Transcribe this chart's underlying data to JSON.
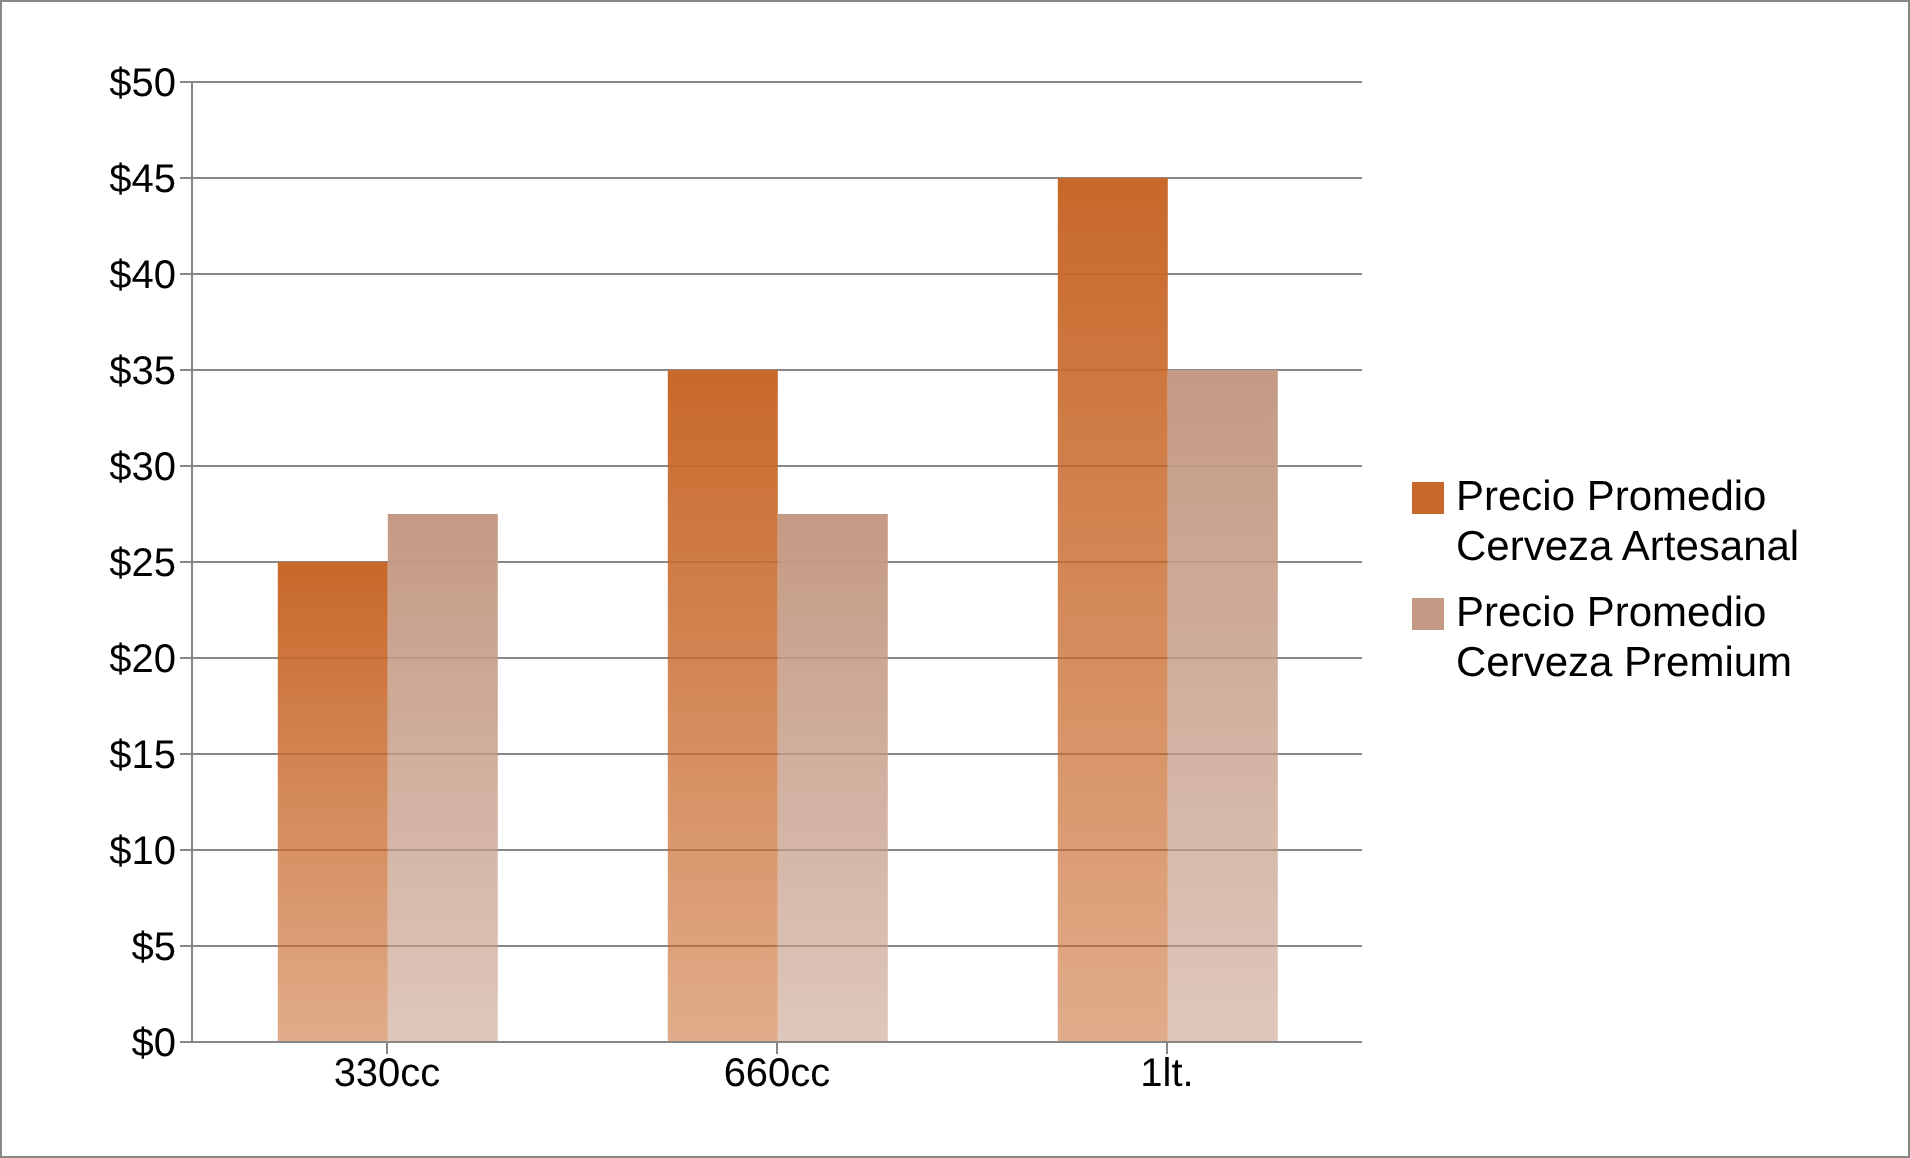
{
  "chart_data": {
    "type": "bar",
    "categories": [
      "330cc",
      "660cc",
      "1lt."
    ],
    "series": [
      {
        "name": "Precio Promedio Cerveza Artesanal",
        "color": "#c8682a",
        "values": [
          25,
          35,
          45
        ]
      },
      {
        "name": "Precio Promedio Cerveza Premium",
        "color": "#c49a84",
        "values": [
          27.5,
          27.5,
          35
        ]
      }
    ],
    "ylim": [
      0,
      50
    ],
    "yticks": [
      {
        "value": 0,
        "label": "$0"
      },
      {
        "value": 5,
        "label": "$5"
      },
      {
        "value": 10,
        "label": "$10"
      },
      {
        "value": 15,
        "label": "$15"
      },
      {
        "value": 20,
        "label": "$20"
      },
      {
        "value": 25,
        "label": "$25"
      },
      {
        "value": 30,
        "label": "$30"
      },
      {
        "value": 35,
        "label": "$35"
      },
      {
        "value": 40,
        "label": "$40"
      },
      {
        "value": 45,
        "label": "$45"
      },
      {
        "value": 50,
        "label": "$50"
      }
    ],
    "grid": "y",
    "legend": "right"
  }
}
